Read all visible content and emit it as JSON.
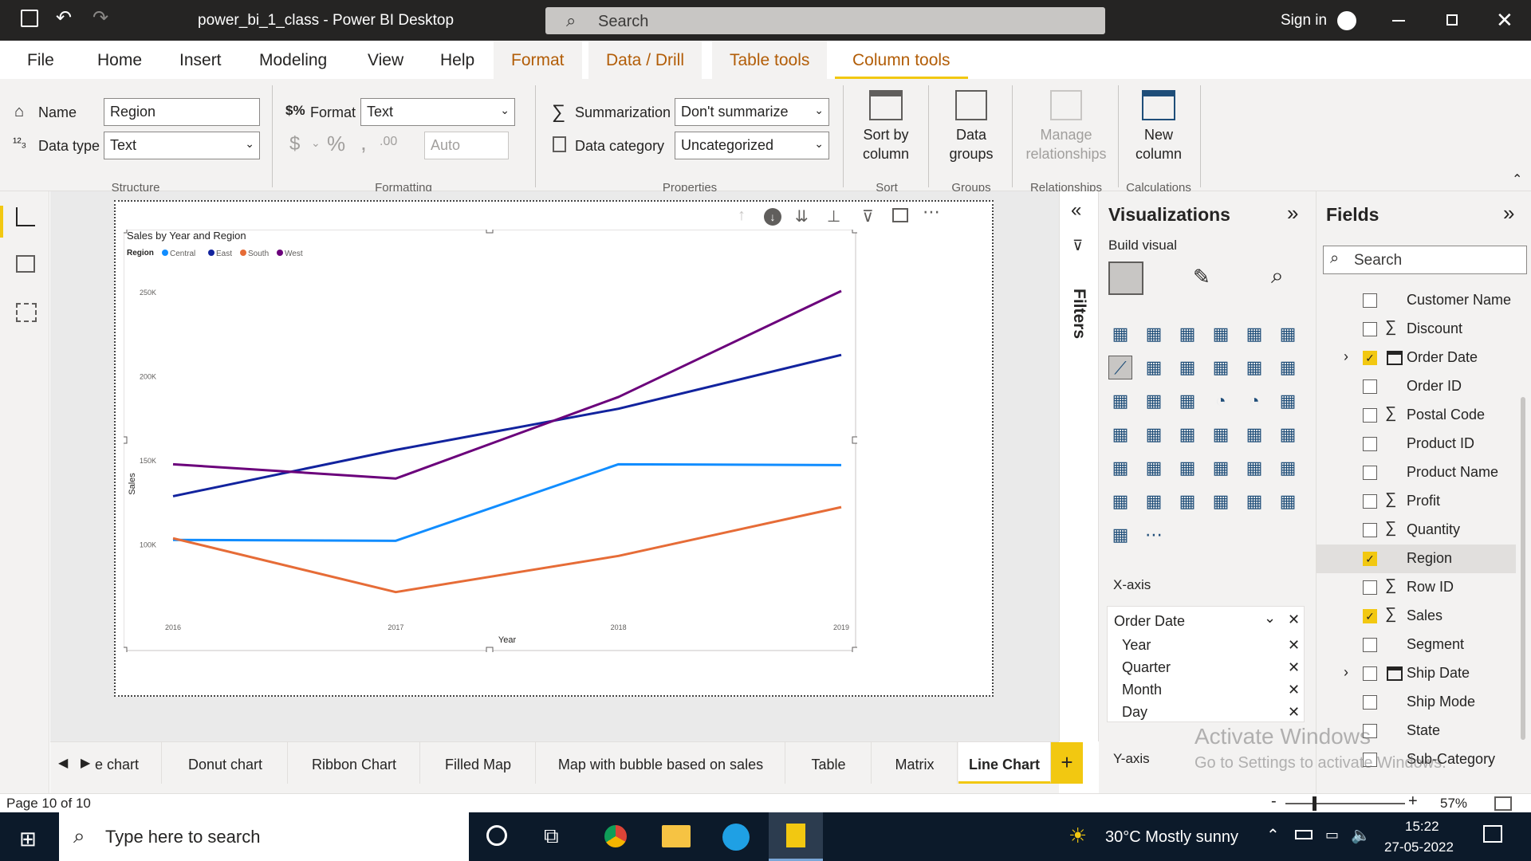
{
  "window": {
    "title": "power_bi_1_class - Power BI Desktop",
    "search": "Search",
    "sign_in": "Sign in"
  },
  "ribbon_tabs": [
    {
      "label": "File"
    },
    {
      "label": "Home"
    },
    {
      "label": "Insert"
    },
    {
      "label": "Modeling"
    },
    {
      "label": "View"
    },
    {
      "label": "Help"
    },
    {
      "label": "Format"
    },
    {
      "label": "Data / Drill"
    },
    {
      "label": "Table tools"
    },
    {
      "label": "Column tools"
    }
  ],
  "ribbon": {
    "name_label": "Name",
    "name_value": "Region",
    "datatype_label": "Data type",
    "datatype_value": "Text",
    "structure_group": "Structure",
    "format_label": "Format",
    "format_value": "Text",
    "decimals_placeholder": "Auto",
    "formatting_group": "Formatting",
    "summarization_label": "Summarization",
    "summarization_value": "Don't summarize",
    "datacategory_label": "Data category",
    "datacategory_value": "Uncategorized",
    "properties_group": "Properties",
    "sort_by_column_1": "Sort by",
    "sort_by_column_2": "column",
    "sort_group": "Sort",
    "data_groups_1": "Data",
    "data_groups_2": "groups",
    "groups_group": "Groups",
    "manage_rel_1": "Manage",
    "manage_rel_2": "relationships",
    "relationships_group": "Relationships",
    "new_column_1": "New",
    "new_column_2": "column",
    "calculations_group": "Calculations"
  },
  "chart_data": {
    "type": "line",
    "title": "Sales by Year and Region",
    "legend_title": "Region",
    "categories": [
      "2016",
      "2017",
      "2018",
      "2019"
    ],
    "xlabel": "Year",
    "ylabel": "Sales",
    "ylim": [
      60000,
      260000
    ],
    "yticks": [
      {
        "v": 100000,
        "label": "100K"
      },
      {
        "v": 150000,
        "label": "150K"
      },
      {
        "v": 200000,
        "label": "200K"
      },
      {
        "v": 250000,
        "label": "250K"
      }
    ],
    "series": [
      {
        "name": "Central",
        "color": "#118dff",
        "values": [
          103000,
          102500,
          148000,
          147500
        ]
      },
      {
        "name": "East",
        "color": "#12239e",
        "values": [
          129000,
          156500,
          181000,
          213000
        ]
      },
      {
        "name": "South",
        "color": "#e66c37",
        "values": [
          104000,
          72000,
          93500,
          122500
        ]
      },
      {
        "name": "West",
        "color": "#6b007b",
        "values": [
          148000,
          139500,
          188000,
          251000
        ]
      }
    ]
  },
  "filters_label": "Filters",
  "visualizations": {
    "title": "Visualizations",
    "build_visual": "Build visual",
    "xaxis_label": "X-axis",
    "xaxis_field": "Order Date",
    "hierarchy": [
      {
        "label": "Year"
      },
      {
        "label": "Quarter"
      },
      {
        "label": "Month"
      },
      {
        "label": "Day"
      }
    ],
    "yaxis_label": "Y-axis"
  },
  "fields": {
    "title": "Fields",
    "search_placeholder": "Search",
    "items": [
      {
        "label": "Customer Name",
        "checked": false,
        "sigma": false
      },
      {
        "label": "Discount",
        "checked": false,
        "sigma": true
      },
      {
        "label": "Order Date",
        "checked": true,
        "sigma": false
      },
      {
        "label": "Order ID",
        "checked": false,
        "sigma": false
      },
      {
        "label": "Postal Code",
        "checked": false,
        "sigma": true
      },
      {
        "label": "Product ID",
        "checked": false,
        "sigma": false
      },
      {
        "label": "Product Name",
        "checked": false,
        "sigma": false
      },
      {
        "label": "Profit",
        "checked": false,
        "sigma": true
      },
      {
        "label": "Quantity",
        "checked": false,
        "sigma": true
      },
      {
        "label": "Region",
        "checked": true,
        "sigma": false
      },
      {
        "label": "Row ID",
        "checked": false,
        "sigma": true
      },
      {
        "label": "Sales",
        "checked": true,
        "sigma": true
      },
      {
        "label": "Segment",
        "checked": false,
        "sigma": false
      },
      {
        "label": "Ship Date",
        "checked": false,
        "sigma": false
      },
      {
        "label": "Ship Mode",
        "checked": false,
        "sigma": false
      },
      {
        "label": "State",
        "checked": false,
        "sigma": false
      },
      {
        "label": "Sub-Category",
        "checked": false,
        "sigma": false
      }
    ]
  },
  "page_tabs": [
    {
      "label": "e chart"
    },
    {
      "label": "Donut chart"
    },
    {
      "label": "Ribbon Chart"
    },
    {
      "label": "Filled Map"
    },
    {
      "label": "Map with bubble based on sales"
    },
    {
      "label": "Table"
    },
    {
      "label": "Matrix"
    },
    {
      "label": "Line Chart"
    }
  ],
  "status": {
    "page": "Page 10 of 10",
    "zoom": "57%"
  },
  "watermark": {
    "line1": "Activate Windows",
    "line2": "Go to Settings to activate Windows."
  },
  "taskbar": {
    "search": "Type here to search",
    "weather": "30°C  Mostly sunny",
    "time": "15:22",
    "date": "27-05-2022"
  }
}
